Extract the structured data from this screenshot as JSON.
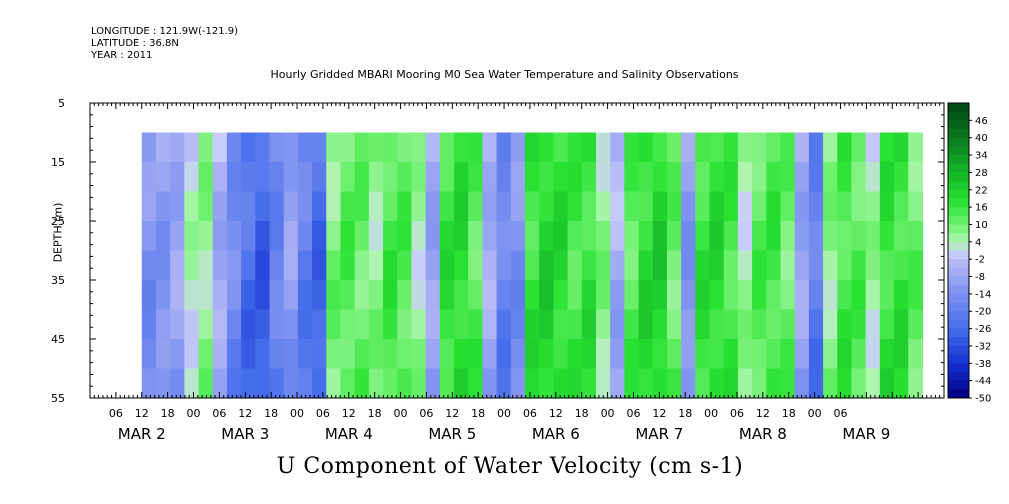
{
  "header": {
    "longitude": "LONGITUDE : 121.9W(-121.9)",
    "latitude": "LATITUDE : 36.8N",
    "year": "YEAR : 2011"
  },
  "chart_data": {
    "type": "heatmap",
    "title": "Hourly Gridded MBARI Mooring M0 Sea Water Temperature and Salinity Observations",
    "xlabel": "U Component of Water Velocity (cm s-1)",
    "ylabel": "DEPTH (m)",
    "y_ticks": [
      "5",
      "15",
      "25",
      "35",
      "45",
      "55"
    ],
    "ylim": [
      55,
      5
    ],
    "x_hour_ticks": [
      "06",
      "12",
      "18",
      "00",
      "06",
      "12",
      "18",
      "00",
      "06",
      "12",
      "18",
      "00",
      "06",
      "12",
      "18",
      "00",
      "06",
      "12",
      "18",
      "00",
      "06",
      "12",
      "18",
      "00",
      "06",
      "12",
      "18",
      "00",
      "06"
    ],
    "x_day_labels": [
      "MAR 2",
      "MAR 3",
      "MAR 4",
      "MAR 5",
      "MAR 6",
      "MAR 7",
      "MAR 8",
      "MAR 9"
    ],
    "colorbar": {
      "ticks": [
        "46",
        "40",
        "34",
        "28",
        "22",
        "16",
        "10",
        "4",
        "-2",
        "-8",
        "-14",
        "-20",
        "-26",
        "-32",
        "-38",
        "-44",
        "-50"
      ],
      "range": [
        -50,
        52
      ]
    },
    "data_depth_range": [
      10,
      55
    ],
    "data_time_range_hours_from_mar2_00": [
      12,
      193
    ],
    "column_mean_velocity": [
      -12,
      -10,
      -6,
      2,
      6,
      -4,
      -14,
      -22,
      -26,
      -16,
      -8,
      -18,
      -24,
      8,
      12,
      10,
      6,
      14,
      12,
      4,
      -6,
      16,
      18,
      12,
      -4,
      -16,
      -12,
      16,
      20,
      18,
      14,
      16,
      6,
      -4,
      12,
      18,
      20,
      10,
      -10,
      16,
      18,
      14,
      4,
      12,
      14,
      10,
      -6,
      -18,
      6,
      14,
      12,
      4,
      16,
      16,
      10
    ]
  }
}
